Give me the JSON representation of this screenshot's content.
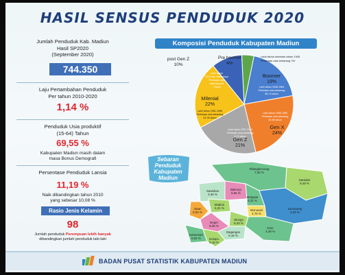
{
  "title": "HASIL SENSUS PENDUDUK 2020",
  "left": {
    "jumlah": {
      "label_lines": [
        "Jumlah Penduduk Kab. Madiun",
        "Hasil SP2020",
        "(September 2020)"
      ],
      "value": "744.350"
    },
    "laju": {
      "label_lines": [
        "Laju Pertambahan Penduduk",
        "Per tahun 2010-2020"
      ],
      "value": "1,14 %"
    },
    "produktif": {
      "label_lines": [
        "Penduduk Usia produktif",
        "(15-64) Tahun"
      ],
      "value": "69,55 %",
      "note_lines": [
        "Kabupaten Madiun masih dalam",
        "masa Bonus Demografi"
      ]
    },
    "lansia": {
      "label": "Persentase Penduduk Lansia",
      "value": "11,19 %",
      "note_lines": [
        "Naik dibandingkan tahun 2010",
        "yang sebesar 10,08 %"
      ]
    },
    "rasio": {
      "label": "Rasio Jenis Kelamin",
      "value": "98",
      "note_prefix": "Jumlah penduduk ",
      "note_highlight": "Perempuan lebih banyak",
      "note_suffix": "dibandingkan jumlah penduduk laki-laki"
    }
  },
  "composition": {
    "title": "Komposisi Penduduk Kabupaten Madiun",
    "labels": {
      "post_gen_z": {
        "name": "post Gen Z",
        "pct": "10%"
      },
      "pre_boomer": {
        "name": "Pre boomer",
        "pct": "4%"
      },
      "pre_boomer_desc": [
        "Lahir tahun  sebelum tahun 1945",
        "Perkiraan usia sekarang 75+"
      ],
      "boomer": {
        "name": "Boomer",
        "pct": "19%"
      },
      "boomer_desc": [
        "Lahir tahun 1946-1964",
        "Perkiraan usia sekarang",
        "56-74 tahun"
      ],
      "gen_x": {
        "name": "Gen X",
        "pct": "24%"
      },
      "gen_x_desc": [
        "Lahir tahun 1965-1980",
        "Perkiraan usia sekarang",
        "40-55 tahun"
      ],
      "gen_z": {
        "name": "Gen Z",
        "pct": "21%"
      },
      "gen_z_desc": [
        "Lahir tahun 1997-2012",
        "Perkiraan usia sekarang",
        "8-23 tahun"
      ],
      "milenial": {
        "name": "Milenial",
        "pct": "22%"
      },
      "milenial_desc": [
        "Lahir tahun 1981-1996",
        "Perkiraan usia sekarang",
        "24-39 tahun"
      ],
      "post_desc": [
        "Lahir tahun",
        "2013 dan seterusnya",
        "Perkiraan usia",
        "sekarang s/d",
        "7 tahun"
      ]
    },
    "colors": {
      "boomer": "#4a7fd0",
      "gen_x": "#f07f2b",
      "gen_z": "#a8a8a8",
      "milenial": "#f7c21a",
      "post_gen_z": "#3a63b8",
      "pre_boomer": "#5ea64a"
    }
  },
  "map": {
    "title_lines": [
      "Sebaran",
      "Penduduk",
      "Kabupaten",
      "Madiun"
    ],
    "districts": [
      {
        "name": "Pilangkenceng",
        "pct": "7,30 %"
      },
      {
        "name": "Saradan",
        "pct": "9,49 %"
      },
      {
        "name": "Sawahan",
        "pct": "3,46 %"
      },
      {
        "name": "Balerejo",
        "pct": "5,55 %"
      },
      {
        "name": "Mejayan",
        "pct": "6,31 %"
      },
      {
        "name": "Jiwan",
        "pct": "8,02 %"
      },
      {
        "name": "Madiun",
        "pct": "5,31 %"
      },
      {
        "name": "Wonoasri",
        "pct": "4,76 %"
      },
      {
        "name": "Gemarang",
        "pct": "4,63 %"
      },
      {
        "name": "Wungu",
        "pct": "8,33 %"
      },
      {
        "name": "Geger",
        "pct": "8,06 %"
      },
      {
        "name": "Kare",
        "pct": "4,49 %"
      },
      {
        "name": "Kebonsari",
        "pct": "8,02 %"
      },
      {
        "name": "Dagangan",
        "pct": "5,16 %"
      },
      {
        "name": "Dolopo",
        "pct": "8,16 %"
      }
    ]
  },
  "footer": {
    "agency": "BADAN PUSAT STATISTIK KABUPATEN MADIUN"
  }
}
